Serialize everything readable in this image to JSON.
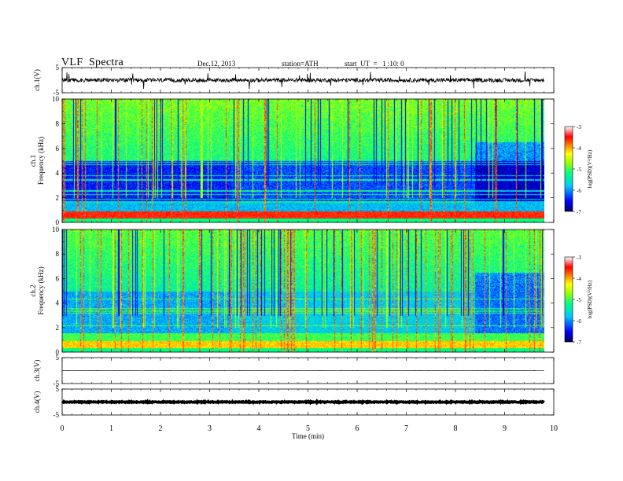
{
  "header": {
    "title": "VLF  Spectra",
    "date": "Dec.12, 2013",
    "station": "station=ATH",
    "start": "start  UT  =   1 :10: 0"
  },
  "chart_data": [
    {
      "id": "ch1-waveform",
      "type": "line",
      "ylabel": "ch.1(V)",
      "ylim": [
        -5,
        5
      ],
      "yticks": [
        "5",
        "-5"
      ],
      "xlim": [
        0,
        10
      ],
      "trace_level": 0,
      "trace_amplitude": "noisy, roughly ±1 V with sparse spikes to about ±3 V",
      "color": "#000000"
    },
    {
      "id": "ch1-spectrogram",
      "type": "heatmap",
      "ylabel": "ch.1\nFrequency  (kHz)",
      "ylim": [
        0,
        10
      ],
      "yticks": [
        "0",
        "2",
        "4",
        "6",
        "8",
        "10"
      ],
      "xlim": [
        0,
        10
      ],
      "data_end_min": 9.8,
      "colorbar": {
        "label": "log(PSD)(V²/Hz)",
        "range": [
          -7,
          -3
        ],
        "ticks": [
          "-3",
          "-4",
          "-5",
          "-6",
          "-7"
        ],
        "colors": [
          "#000080",
          "#0000ff",
          "#00c8ff",
          "#00ff80",
          "#a0ff00",
          "#ffff00",
          "#ff8000",
          "#ff0000",
          "#ffffff"
        ]
      },
      "segments_min": [
        0,
        3.45,
        8.4,
        9.8
      ],
      "description_bands": "strong red band near 0.5 kHz; dark-blue quiet band from about 1.5 to 5 kHz; broadband green/yellow/red bursts above 5 kHz"
    },
    {
      "id": "ch2-spectrogram",
      "type": "heatmap",
      "ylabel": "ch.2\nFrequency  (kHz)",
      "ylim": [
        0,
        10
      ],
      "yticks": [
        "0",
        "2",
        "4",
        "6",
        "8",
        "10"
      ],
      "xlim": [
        0,
        10
      ],
      "data_end_min": 9.8,
      "colorbar": {
        "label": "log(PSD)(V²/Hz)",
        "range": [
          -7,
          -3
        ],
        "ticks": [
          "-3",
          "-4",
          "-5",
          "-6",
          "-7"
        ],
        "colors": [
          "#000080",
          "#0000ff",
          "#00c8ff",
          "#00ff80",
          "#a0ff00",
          "#ffff00",
          "#ff8000",
          "#ff0000",
          "#ffffff"
        ]
      },
      "segments_min": [
        0,
        3.45,
        8.4,
        9.8
      ]
    },
    {
      "id": "ch3-waveform",
      "type": "line",
      "ylabel": "ch.3(V)",
      "ylim": [
        -5,
        5
      ],
      "yticks": [
        "5",
        "-5"
      ],
      "xlim": [
        0,
        10
      ],
      "trace_level": 0,
      "color": "#000000"
    },
    {
      "id": "ch4-waveform",
      "type": "line",
      "ylabel": "ch.4(V)",
      "ylim": [
        -5,
        5
      ],
      "yticks": [
        "5",
        "-5"
      ],
      "xlim": [
        0,
        10
      ],
      "trace_level": 0,
      "color": "#000000",
      "style": "thick"
    }
  ],
  "xaxis": {
    "label": "Time  (min)",
    "ticks": [
      "0",
      "1",
      "2",
      "3",
      "4",
      "5",
      "6",
      "7",
      "8",
      "9",
      "10"
    ],
    "range": [
      0,
      10
    ]
  }
}
